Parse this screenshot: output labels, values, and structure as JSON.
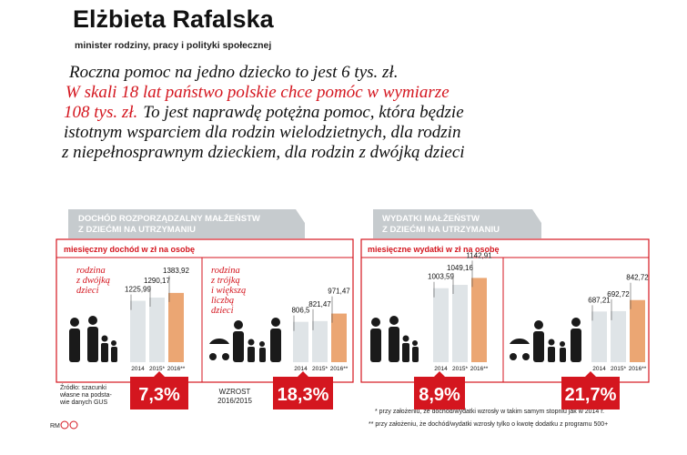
{
  "header": {
    "name": "Elżbieta Rafalska",
    "role": "minister rodziny, pracy i polityki społecznej"
  },
  "quote": {
    "line1": "Roczna pomoc na jedno dziecko to jest 6 tys. zł.",
    "line2": "W skali 18 lat państwo polskie chce pomóc w wymiarze",
    "line3_red": "108 tys. zł.",
    "line3": "To jest naprawdę potężna pomoc, która będzie",
    "line4": "istotnym wsparciem dla rodzin wielodzietnych, dla rodzin",
    "line5": "z niepełnosprawnym dzieckiem, dla rodzin z dwójką dzieci"
  },
  "panels": [
    {
      "title_lines": [
        "DOCHÓD ROZPORZĄDZALNY MAŁŻEŃSTW",
        "Z DZIEĆMI NA UTRZYMANIU"
      ],
      "unit": "miesięczny dochód w zł na osobę"
    },
    {
      "title_lines": [
        "WYDATKI MAŁŻEŃSTW",
        "Z DZIEĆMI NA UTRZYMANIU"
      ],
      "unit": "miesięczne wydatki w zł na osobę"
    }
  ],
  "growth_caption": [
    "WZROST",
    "2016/2015"
  ],
  "source": [
    "Źródło: szacunki",
    "własne na podsta-",
    "wie danych GUS"
  ],
  "footnotes": [
    "* przy założeniu, że dochód/wydatki wzrosły w takim samym stopniu jak w 2014 r.",
    "** przy założeniu, że dochód/wydatki wzrosły tylko o kwotę dodatku z programu 500+"
  ],
  "credit": "RM",
  "chart_data": [
    {
      "type": "bar",
      "subtitle_lines": [
        "rodzina",
        "z dwójką",
        "dzieci"
      ],
      "categories": [
        "2014",
        "2015*",
        "2016**"
      ],
      "values": [
        1225.99,
        1290.17,
        1383.92
      ],
      "value_labels": [
        "1225,99",
        "1290,17",
        "1383,92"
      ],
      "colors": [
        "#dfe4e7",
        "#dfe4e7",
        "#eba673"
      ],
      "growth": "7,3%"
    },
    {
      "type": "bar",
      "subtitle_lines": [
        "rodzina",
        "z trójką",
        "i większą",
        "liczbą",
        "dzieci"
      ],
      "categories": [
        "2014",
        "2015*",
        "2016**"
      ],
      "values": [
        806.5,
        821.47,
        971.47
      ],
      "value_labels": [
        "806,5",
        "821,47",
        "971,47"
      ],
      "colors": [
        "#dfe4e7",
        "#dfe4e7",
        "#eba673"
      ],
      "growth": "18,3%"
    },
    {
      "type": "bar",
      "categories": [
        "2014",
        "2015*",
        "2016**"
      ],
      "values": [
        1003.59,
        1049.16,
        1142.91
      ],
      "value_labels": [
        "1003,59",
        "1049,16",
        "1142,91"
      ],
      "colors": [
        "#dfe4e7",
        "#dfe4e7",
        "#eba673"
      ],
      "growth": "8,9%"
    },
    {
      "type": "bar",
      "categories": [
        "2014",
        "2015*",
        "2016**"
      ],
      "values": [
        687.21,
        692.72,
        842.72
      ],
      "value_labels": [
        "687,21",
        "692,72",
        "842,72"
      ],
      "colors": [
        "#dfe4e7",
        "#dfe4e7",
        "#eba673"
      ],
      "growth": "21,7%"
    }
  ]
}
